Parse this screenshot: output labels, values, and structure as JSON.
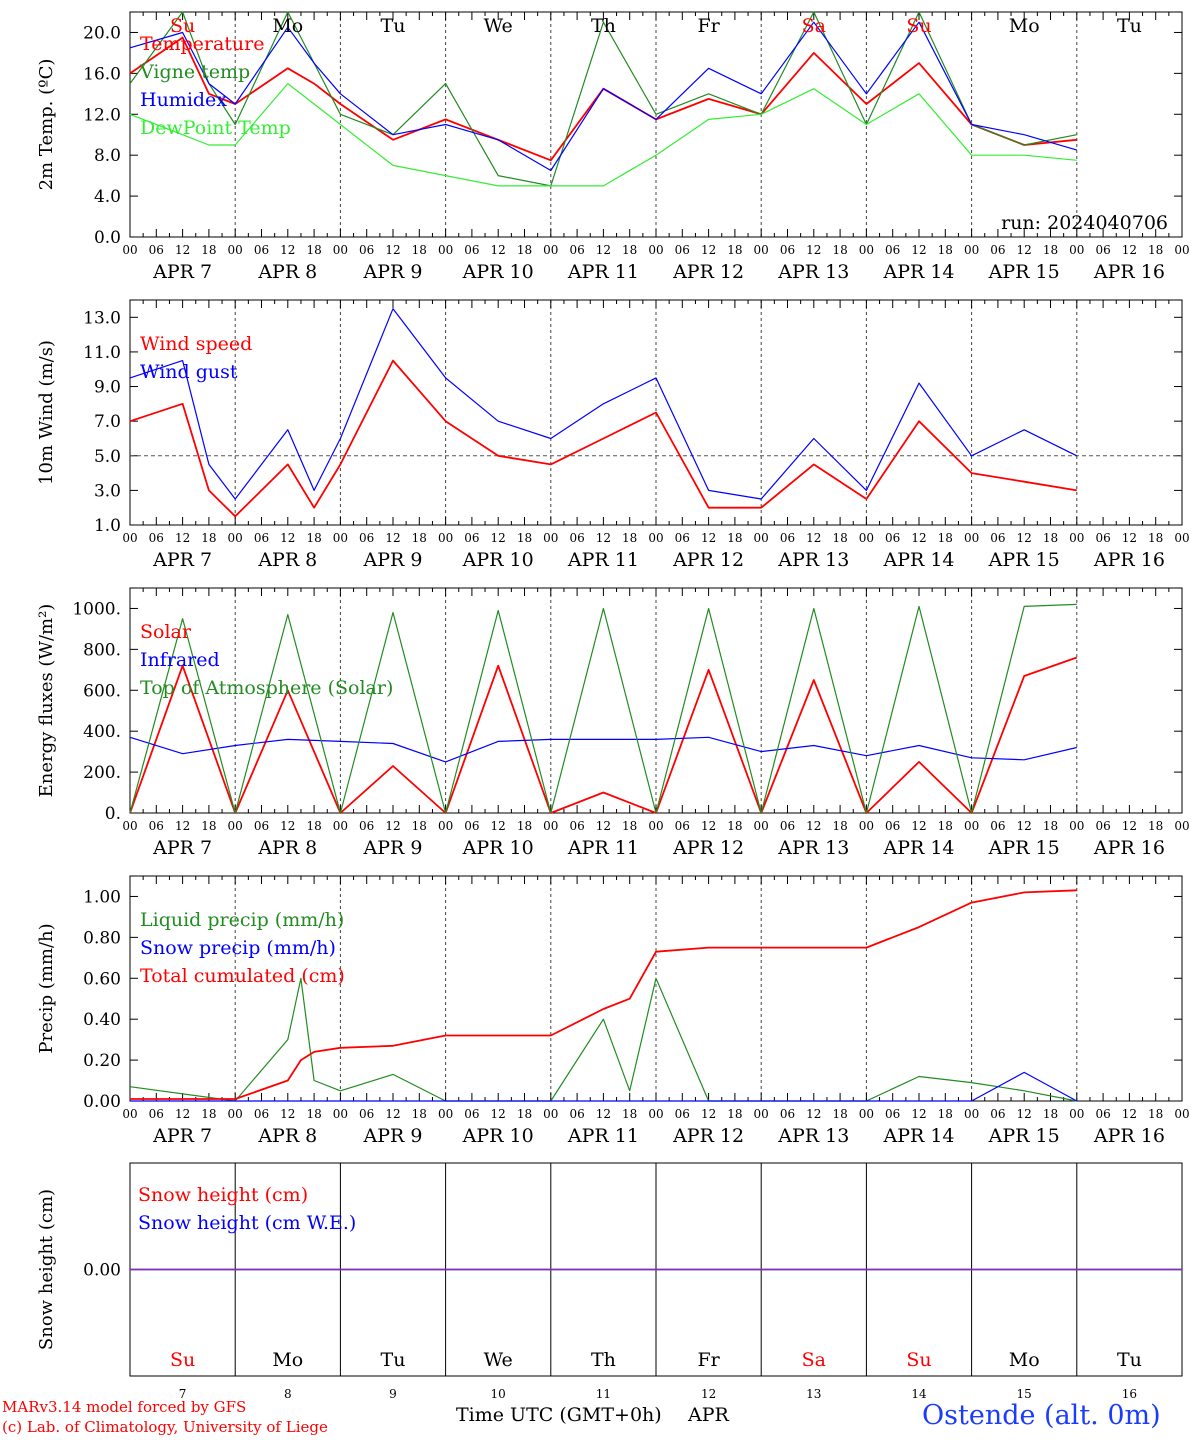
{
  "run_label": "run: 2024040706",
  "x_title": "Time UTC (GMT+0h)",
  "x_month": "APR",
  "location": "Ostende (alt. 0m)",
  "credit_1": "MARv3.14 model forced by GFS",
  "credit_2": "(c) Lab. of Climatology, University of Liege",
  "colors": {
    "red": "#ff0000",
    "green": "#228b22",
    "blue": "#0000ff",
    "lightgreen": "#33ee33",
    "purple": "#7b2fbf"
  },
  "chart_data": [
    {
      "type": "line",
      "ylabel": "2m Temp. (ºC)",
      "ylim": [
        0,
        22
      ],
      "yticks": [
        "0.0",
        "4.0",
        "8.0",
        "12.0",
        "16.0",
        "20.0"
      ],
      "day_names": [
        "Su",
        "Mo",
        "Tu",
        "We",
        "Th",
        "Fr",
        "Sa",
        "Su",
        "Mo",
        "Tu"
      ],
      "day_colors": [
        "red",
        "black",
        "black",
        "black",
        "black",
        "black",
        "red",
        "red",
        "black",
        "black"
      ],
      "x": [
        0,
        12,
        18,
        24,
        36,
        42,
        48,
        60,
        72,
        84,
        96,
        108,
        120,
        132,
        144,
        156,
        168,
        180,
        192,
        204,
        216
      ],
      "series": [
        {
          "name": "Temperature",
          "color": "red",
          "values": [
            16,
            19.5,
            14,
            13,
            16.5,
            15,
            13,
            9.5,
            11.5,
            9.5,
            7.5,
            14.5,
            11.5,
            13.5,
            12,
            18,
            13,
            17,
            11,
            9,
            9.5
          ]
        },
        {
          "name": "Vigne temp",
          "color": "green",
          "values": [
            15,
            22,
            15,
            11,
            22,
            17,
            12,
            10,
            15,
            6,
            5,
            21,
            12,
            14,
            12,
            22,
            11,
            22,
            11,
            9,
            10
          ]
        },
        {
          "name": "Humidex",
          "color": "blue",
          "values": [
            18.5,
            20,
            15,
            13,
            20.5,
            17,
            14,
            10,
            11,
            9.5,
            6.5,
            14.5,
            11.5,
            16.5,
            14,
            21,
            14,
            21,
            11,
            10,
            8.5
          ]
        },
        {
          "name": "DewPoint Temp",
          "color": "lightgreen",
          "values": [
            12,
            10,
            9,
            9,
            15,
            13,
            11,
            7,
            6,
            5,
            5,
            5,
            8,
            11.5,
            12,
            14.5,
            11,
            14,
            8,
            8,
            7.5
          ]
        }
      ]
    },
    {
      "type": "line",
      "ylabel": "10m Wind (m/s)",
      "ylim": [
        1,
        14
      ],
      "yticks": [
        "1.0",
        "3.0",
        "5.0",
        "7.0",
        "9.0",
        "11.0",
        "13.0"
      ],
      "x": [
        0,
        12,
        18,
        24,
        36,
        42,
        48,
        60,
        72,
        84,
        96,
        108,
        120,
        132,
        144,
        156,
        168,
        180,
        192,
        204,
        216
      ],
      "series": [
        {
          "name": "Wind speed",
          "color": "red",
          "values": [
            7,
            8,
            3,
            1.5,
            4.5,
            2,
            4.5,
            10.5,
            7,
            5,
            4.5,
            6,
            7.5,
            2,
            2,
            4.5,
            2.5,
            7,
            4,
            3.5,
            3
          ]
        },
        {
          "name": "Wind gust",
          "color": "blue",
          "values": [
            9.5,
            10.5,
            4.5,
            2.5,
            6.5,
            3,
            6,
            13.5,
            9.5,
            7,
            6,
            8,
            9.5,
            3,
            2.5,
            6,
            3,
            9.2,
            5,
            6.5,
            5
          ]
        }
      ]
    },
    {
      "type": "line",
      "ylabel": "Energy fluxes (W/m²)",
      "ylim": [
        0,
        1100
      ],
      "yticks": [
        "0.",
        "200.",
        "400.",
        "600.",
        "800.",
        "1000."
      ],
      "x": [
        0,
        12,
        24,
        36,
        48,
        60,
        72,
        84,
        96,
        108,
        120,
        132,
        144,
        156,
        168,
        180,
        192,
        204,
        216
      ],
      "series": [
        {
          "name": "Solar",
          "color": "red",
          "values": [
            0,
            720,
            0,
            600,
            0,
            230,
            0,
            720,
            0,
            100,
            0,
            700,
            0,
            650,
            0,
            250,
            0,
            670,
            760
          ]
        },
        {
          "name": "Infrared",
          "color": "blue",
          "values": [
            370,
            290,
            330,
            360,
            350,
            340,
            250,
            350,
            360,
            360,
            360,
            370,
            300,
            330,
            280,
            330,
            270,
            260,
            320
          ]
        },
        {
          "name": "Top of Atmosphere (Solar)",
          "color": "green",
          "values": [
            0,
            950,
            0,
            970,
            0,
            980,
            0,
            990,
            0,
            1000,
            0,
            1000,
            0,
            1000,
            0,
            1010,
            0,
            1010,
            1020
          ]
        }
      ]
    },
    {
      "type": "line",
      "ylabel": "Precip (mm/h)",
      "ylim": [
        0,
        1.1
      ],
      "yticks": [
        "0.00",
        "0.20",
        "0.40",
        "0.60",
        "0.80",
        "1.00"
      ],
      "x": [
        0,
        24,
        36,
        39,
        42,
        48,
        60,
        72,
        84,
        96,
        108,
        114,
        120,
        132,
        144,
        156,
        168,
        180,
        192,
        204,
        216
      ],
      "series": [
        {
          "name": "Liquid precip (mm/h)",
          "color": "green",
          "values": [
            0.07,
            0,
            0.3,
            0.6,
            0.1,
            0.05,
            0.13,
            0,
            0,
            0,
            0.4,
            0.05,
            0.6,
            0,
            0,
            0,
            0,
            0.12,
            0.09,
            0.05,
            0
          ]
        },
        {
          "name": "Snow precip (mm/h)",
          "color": "blue",
          "values": [
            0,
            0,
            0,
            0,
            0,
            0,
            0,
            0,
            0,
            0,
            0,
            0,
            0,
            0,
            0,
            0,
            0,
            0,
            0,
            0.14,
            0
          ]
        },
        {
          "name": "Total cumulated (cm)",
          "color": "red",
          "values": [
            0.01,
            0.01,
            0.1,
            0.2,
            0.24,
            0.26,
            0.27,
            0.32,
            0.32,
            0.32,
            0.45,
            0.5,
            0.73,
            0.75,
            0.75,
            0.75,
            0.75,
            0.85,
            0.97,
            1.02,
            1.03
          ]
        }
      ]
    },
    {
      "type": "line",
      "ylabel": "Snow height (cm)",
      "ylim": [
        -1,
        1
      ],
      "yticks": [
        "0.00"
      ],
      "x": [
        0,
        240
      ],
      "series": [
        {
          "name": "Snow height (cm)",
          "color": "red",
          "values": [
            0,
            0
          ]
        },
        {
          "name": "Snow height (cm W.E.)",
          "color": "blue",
          "values": [
            0,
            0
          ]
        }
      ]
    }
  ],
  "hour_ticks": [
    "00",
    "06",
    "12",
    "18"
  ],
  "date_labels": [
    "APR  7",
    "APR  8",
    "APR  9",
    "APR 10",
    "APR 11",
    "APR 12",
    "APR 13",
    "APR 14",
    "APR 15",
    "APR 16"
  ],
  "bottom_day_names": [
    "Su",
    "Mo",
    "Tu",
    "We",
    "Th",
    "Fr",
    "Sa",
    "Su",
    "Mo",
    "Tu"
  ],
  "bottom_day_colors": [
    "red",
    "black",
    "black",
    "black",
    "black",
    "black",
    "red",
    "red",
    "black",
    "black"
  ],
  "bottom_day_numbers": [
    "7",
    "8",
    "9",
    "10",
    "11",
    "12",
    "13",
    "14",
    "15",
    "16"
  ],
  "wind_ref_line": 5.0
}
